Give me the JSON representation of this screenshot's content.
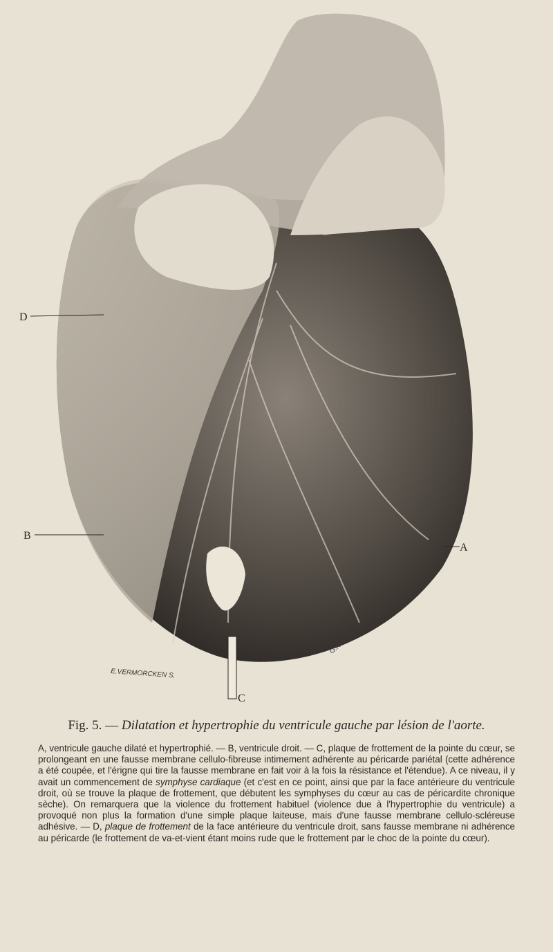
{
  "figure": {
    "labels": {
      "d": "D",
      "b": "B",
      "a": "A",
      "c": "C"
    },
    "engraver": "E.VERMORCKEN S.",
    "artist": "G.NICOLET"
  },
  "caption": {
    "number": "Fig. 5.",
    "title": "Dilatation et hypertrophie du ventricule gauche par lésion de l'aorte."
  },
  "body": {
    "parts": [
      "A, ventricule gauche dilaté et hypertrophié. — B, ventricule droit. — C, plaque de frottement de la pointe du cœur, se prolongeant en une fausse membrane cellulo-fibreuse intimement adhérente au péricarde pariétal (cette adhérence a été coupée, et l'érigne qui tire la fausse membrane en fait voir à la fois la résistance et l'étendue). A ce niveau, il y avait un commencement de ",
      "symphyse cardiaque",
      " (et c'est en ce point, ainsi que par la face antérieure du ventricule droit, où se trouve la plaque de frottement, que débutent les symphyses du cœur au cas de péricardite chronique sèche). On remarquera que la violence du frottement habituel (violence due à l'hypertrophie du ventricule) a provoqué non plus la formation d'une simple plaque laiteuse, mais d'une fausse membrane cellulo-scléreuse adhésive. — D, ",
      "plaque de frottement",
      " de la face antérieure du ventricule droit, sans fausse membrane ni adhérence au péricarde (le frottement de va-et-vient étant moins rude que le frottement par le choc de la pointe du cœur)."
    ]
  }
}
